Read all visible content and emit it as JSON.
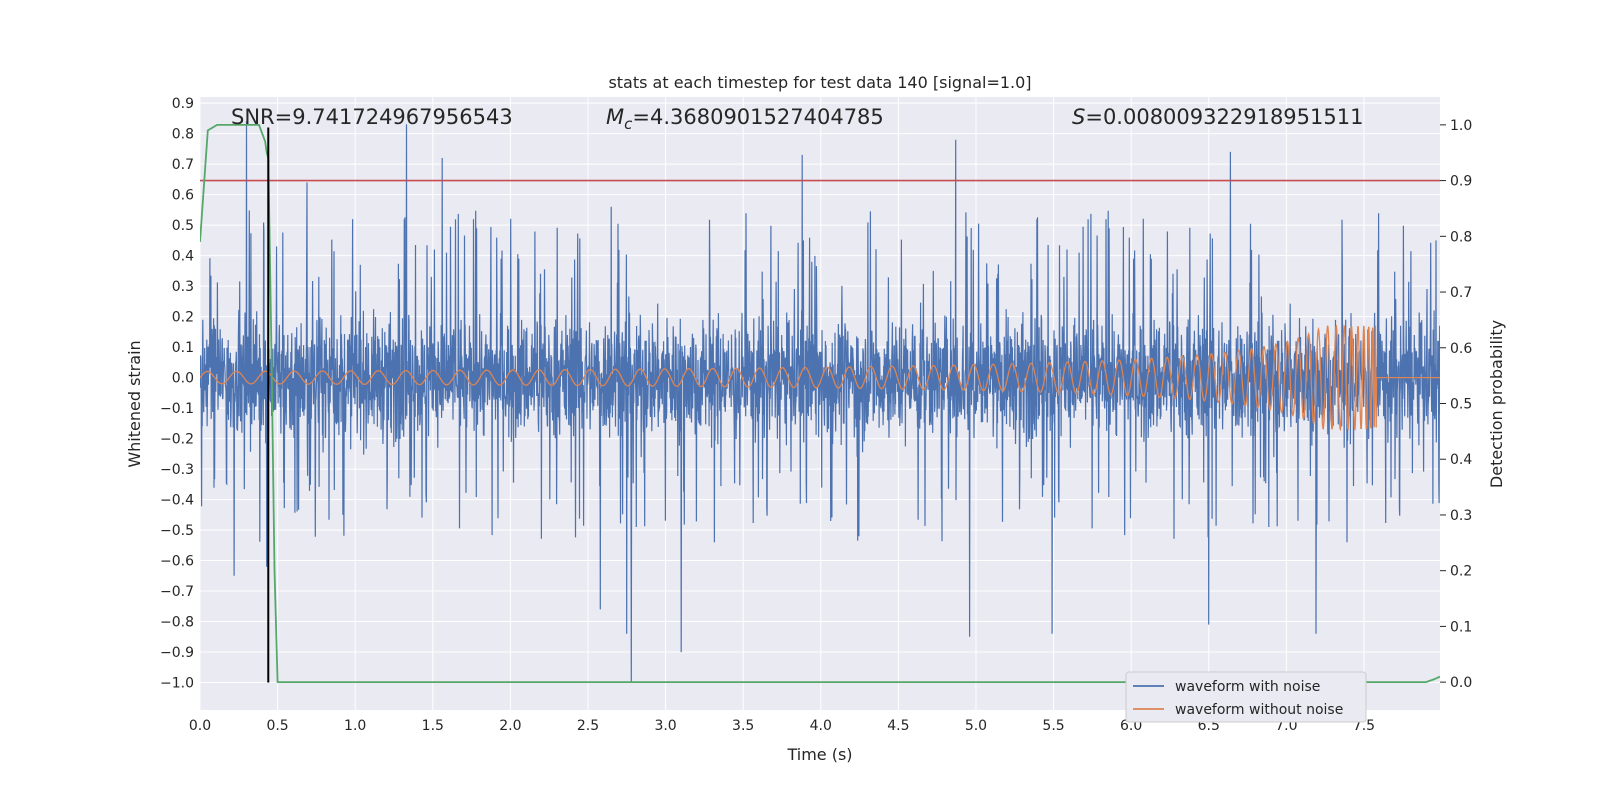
{
  "chart_data": {
    "type": "line",
    "title": "stats at each timestep for test data 140 [signal=1.0]",
    "xlabel": "Time (s)",
    "ylabel": "Whitened strain",
    "ylabel_right": "Detection probability",
    "xlim": [
      0.0,
      7.99
    ],
    "ylim": [
      -1.09,
      0.92
    ],
    "ylim_right": [
      -0.05,
      1.05
    ],
    "xticks": [
      0.0,
      0.5,
      1.0,
      1.5,
      2.0,
      2.5,
      3.0,
      3.5,
      4.0,
      4.5,
      5.0,
      5.5,
      6.0,
      6.5,
      7.0,
      7.5
    ],
    "xtick_labels": [
      "0.0",
      "0.5",
      "1.0",
      "1.5",
      "2.0",
      "2.5",
      "3.0",
      "3.5",
      "4.0",
      "4.5",
      "5.0",
      "5.5",
      "6.0",
      "6.5",
      "7.0",
      "7.5"
    ],
    "yticks": [
      0.9,
      0.8,
      0.7,
      0.6,
      0.5,
      0.4,
      0.3,
      0.2,
      0.1,
      0.0,
      -0.1,
      -0.2,
      -0.3,
      -0.4,
      -0.5,
      -0.6,
      -0.7,
      -0.8,
      -0.9,
      -1.0
    ],
    "ytick_labels": [
      "0.9",
      "0.8",
      "0.7",
      "0.6",
      "0.5",
      "0.4",
      "0.3",
      "0.2",
      "0.1",
      "0.0",
      "−0.1",
      "−0.2",
      "−0.3",
      "−0.4",
      "−0.5",
      "−0.6",
      "−0.7",
      "−0.8",
      "−0.9",
      "−1.0"
    ],
    "yticks_right": [
      1.0,
      0.9,
      0.8,
      0.7,
      0.6,
      0.5,
      0.4,
      0.3,
      0.2,
      0.1,
      0.0
    ],
    "ytick_labels_right": [
      "1.0",
      "0.9",
      "0.8",
      "0.7",
      "0.6",
      "0.5",
      "0.4",
      "0.3",
      "0.2",
      "0.1",
      "0.0"
    ],
    "annotations": {
      "snr": "SNR=9.741724967956543",
      "mc_symbol": "M",
      "mc_sub": "c",
      "mc_value": "=4.3680901527404785",
      "s_symbol": "S",
      "s_value": "=0.008009322918951511"
    },
    "colors": {
      "noise": "#4c72b0",
      "clean": "#dd8452",
      "probability": "#55a868",
      "threshold": "#c44e52",
      "marker": "#000000",
      "axes_bg": "#eaeaf2",
      "grid": "#ffffff"
    },
    "series": [
      {
        "name": "waveform with noise",
        "role": "noise",
        "description_values": "dense noise, bulk amplitude approx ±0.3, spikes up to 0.83 and down to -1.0",
        "spikes": [
          {
            "x": 0.3,
            "y": 0.84
          },
          {
            "x": 0.44,
            "y": 0.36
          },
          {
            "x": 0.69,
            "y": 0.64
          },
          {
            "x": 1.33,
            "y": 0.83
          },
          {
            "x": 1.56,
            "y": 0.72
          },
          {
            "x": 2.65,
            "y": 0.56
          },
          {
            "x": 3.88,
            "y": 0.73
          },
          {
            "x": 4.87,
            "y": 0.78
          },
          {
            "x": 6.64,
            "y": 0.74
          },
          {
            "x": 0.22,
            "y": -0.65
          },
          {
            "x": 0.43,
            "y": -0.62
          },
          {
            "x": 2.58,
            "y": -0.76
          },
          {
            "x": 2.75,
            "y": -0.84
          },
          {
            "x": 2.78,
            "y": -1.0
          },
          {
            "x": 3.1,
            "y": -0.9
          },
          {
            "x": 4.96,
            "y": -0.85
          },
          {
            "x": 5.49,
            "y": -0.84
          },
          {
            "x": 6.5,
            "y": -0.81
          },
          {
            "x": 7.19,
            "y": -0.84
          }
        ]
      },
      {
        "name": "waveform without noise",
        "role": "clean",
        "description_values": "chirp: amplitude ~0.02 at t=0 rising to ~0.17 at merger t=7.58, then ~0",
        "merger_time": 7.58,
        "amplitude_start": 0.02,
        "amplitude_peak": 0.17,
        "amplitude_min_peak": -0.19
      },
      {
        "name": "Detection probability",
        "axis": "right",
        "x": [
          0.0,
          0.05,
          0.11,
          0.15,
          0.2,
          0.25,
          0.3,
          0.35,
          0.38,
          0.42,
          0.43,
          0.44,
          0.46,
          0.48,
          0.5,
          7.85,
          7.9,
          7.95,
          7.99
        ],
        "y": [
          0.79,
          0.99,
          1.0,
          1.0,
          1.0,
          1.0,
          1.0,
          1.0,
          1.0,
          0.97,
          0.95,
          0.94,
          0.6,
          0.2,
          0.0,
          0.0,
          0.0,
          0.005,
          0.01
        ]
      },
      {
        "name": "threshold",
        "axis": "right",
        "y": 0.9
      },
      {
        "name": "detection marker",
        "x": 0.44,
        "y_range": [
          -1.0,
          0.82
        ]
      }
    ],
    "legend": {
      "placement": "lower-right",
      "entries": [
        "waveform with noise",
        "waveform without noise"
      ]
    }
  }
}
